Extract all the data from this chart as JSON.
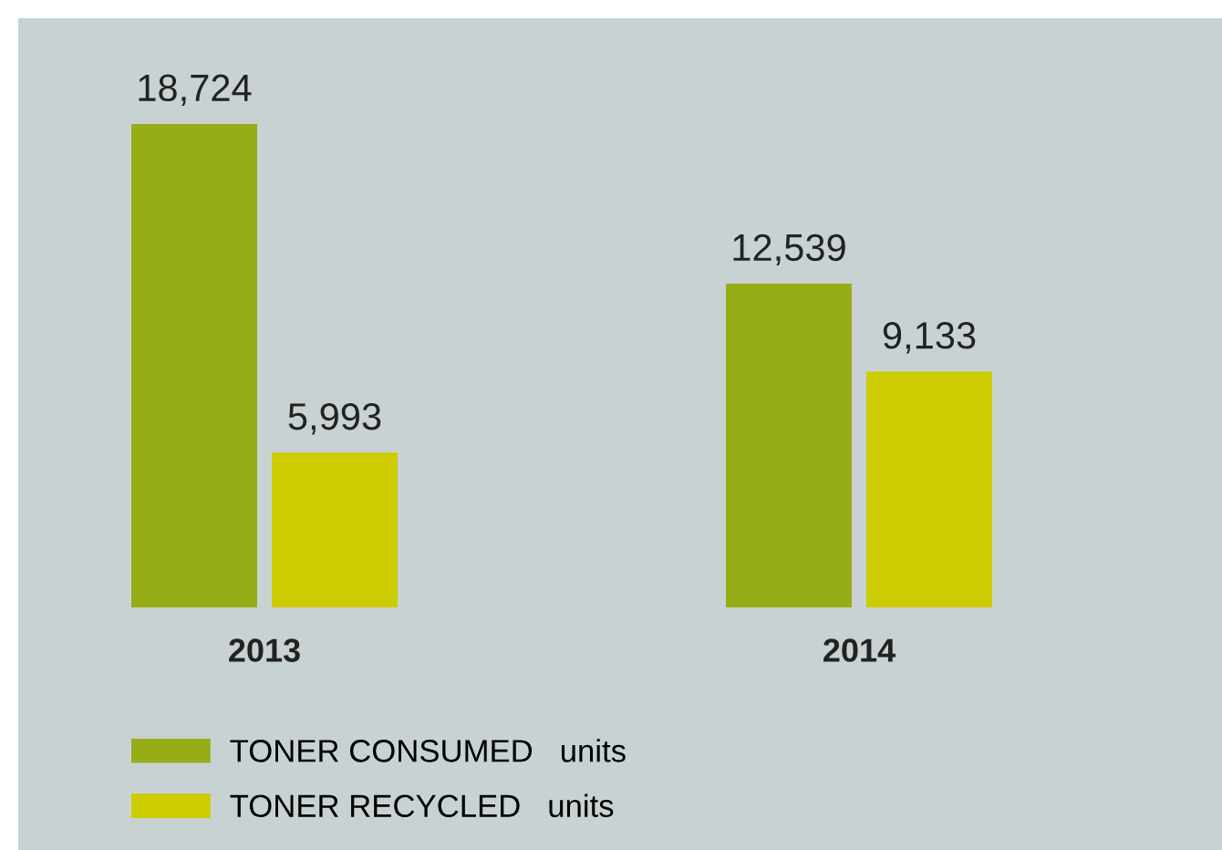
{
  "chart_data": {
    "type": "bar",
    "categories": [
      "2013",
      "2014"
    ],
    "series": [
      {
        "name": "TONER CONSUMED   units",
        "color": "#97ad17",
        "values": [
          18724,
          12539
        ],
        "value_labels": [
          "18,724",
          "12,539"
        ]
      },
      {
        "name": "TONER RECYCLED   units",
        "color": "#cccc00",
        "values": [
          5993,
          9133
        ],
        "value_labels": [
          "5,993",
          "9,133"
        ]
      }
    ],
    "legend": "bottom left",
    "grid": false
  }
}
